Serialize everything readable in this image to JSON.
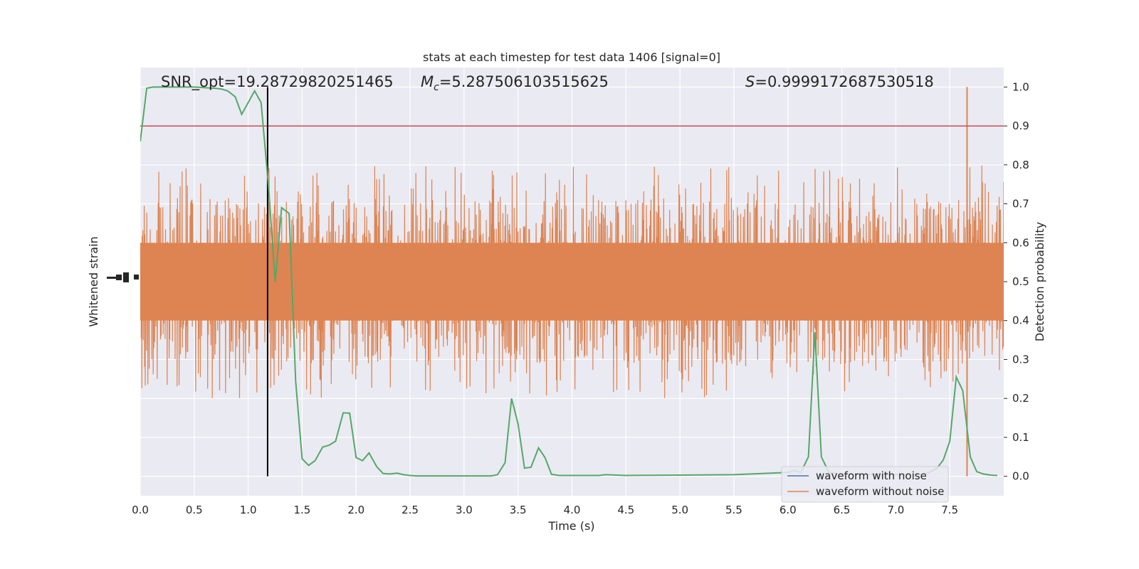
{
  "chart_data": {
    "type": "line",
    "title": "stats at each timestep for test data 1406 [signal=0]",
    "xlabel": "Time (s)",
    "ylabel_left": "Whitened strain",
    "ylabel_right": "Detection probability",
    "xlim": [
      0.0,
      8.0
    ],
    "ylim_right": [
      -0.05,
      1.05
    ],
    "x_ticks": [
      "0.0",
      "0.5",
      "1.0",
      "1.5",
      "2.0",
      "2.5",
      "3.0",
      "3.5",
      "4.0",
      "4.5",
      "5.0",
      "5.5",
      "6.0",
      "6.5",
      "7.0",
      "7.5"
    ],
    "y_ticks_right": [
      "0.0",
      "0.1",
      "0.2",
      "0.3",
      "0.4",
      "0.5",
      "0.6",
      "0.7",
      "0.8",
      "0.9",
      "1.0"
    ],
    "grid": true,
    "annotations": {
      "snr_text": "SNR_opt=19.28729820251465",
      "mc_symbol": "M",
      "mc_sub": "c",
      "mc_value": "=5.287506103515625",
      "s_symbol": "S",
      "s_value": "=0.9999172687530518"
    },
    "threshold": {
      "y": 0.9,
      "color": "#c44e52"
    },
    "vline": {
      "x": 1.18,
      "color": "#000000"
    },
    "legend": {
      "placement": "lower-right",
      "entries": [
        {
          "label": "waveform with noise",
          "color": "#4c72b0"
        },
        {
          "label": "waveform without noise",
          "color": "#dd8452"
        }
      ]
    },
    "series": [
      {
        "name": "waveform without noise",
        "color": "#dd8452",
        "envelope_center": 0.5,
        "core_amplitude": 0.1,
        "typical_peak_range": [
          0.25,
          0.8
        ],
        "max_peak": {
          "x": 7.66,
          "y": 1.0,
          "low": 0.0
        }
      },
      {
        "color": "#55a868",
        "x": [
          0.0,
          0.06,
          0.12,
          0.19,
          0.25,
          0.31,
          0.37,
          0.44,
          0.5,
          0.56,
          0.62,
          0.69,
          0.75,
          0.81,
          0.88,
          0.94,
          1.0,
          1.06,
          1.12,
          1.19,
          1.25,
          1.31,
          1.38,
          1.44,
          1.5,
          1.56,
          1.62,
          1.69,
          1.75,
          1.81,
          1.88,
          1.94,
          2.0,
          2.06,
          2.12,
          2.19,
          2.25,
          2.31,
          2.38,
          2.44,
          2.5,
          2.56,
          2.62,
          2.75,
          3.0,
          3.25,
          3.31,
          3.38,
          3.44,
          3.5,
          3.56,
          3.62,
          3.69,
          3.75,
          3.81,
          3.88,
          4.0,
          4.25,
          4.31,
          4.5,
          5.0,
          5.5,
          6.0,
          6.06,
          6.12,
          6.19,
          6.25,
          6.31,
          6.38,
          6.5,
          7.0,
          7.25,
          7.31,
          7.38,
          7.44,
          7.5,
          7.56,
          7.62,
          7.69,
          7.75,
          7.81,
          7.88,
          7.94
        ],
        "y": [
          0.86,
          0.997,
          1.0,
          1.0,
          1.0,
          1.0,
          1.0,
          1.0,
          1.0,
          0.999,
          0.998,
          0.997,
          0.995,
          0.99,
          0.975,
          0.93,
          0.96,
          0.99,
          0.96,
          0.74,
          0.5,
          0.69,
          0.675,
          0.245,
          0.045,
          0.028,
          0.04,
          0.075,
          0.08,
          0.09,
          0.163,
          0.162,
          0.048,
          0.04,
          0.06,
          0.025,
          0.007,
          0.006,
          0.008,
          0.004,
          0.002,
          0.001,
          0.001,
          0.001,
          0.001,
          0.001,
          0.004,
          0.035,
          0.2,
          0.135,
          0.021,
          0.023,
          0.073,
          0.048,
          0.005,
          0.002,
          0.002,
          0.002,
          0.004,
          0.002,
          0.003,
          0.004,
          0.01,
          0.015,
          0.01,
          0.05,
          0.37,
          0.05,
          0.01,
          0.005,
          0.004,
          0.005,
          0.01,
          0.02,
          0.042,
          0.09,
          0.255,
          0.22,
          0.05,
          0.012,
          0.006,
          0.003,
          0.002
        ]
      }
    ]
  }
}
